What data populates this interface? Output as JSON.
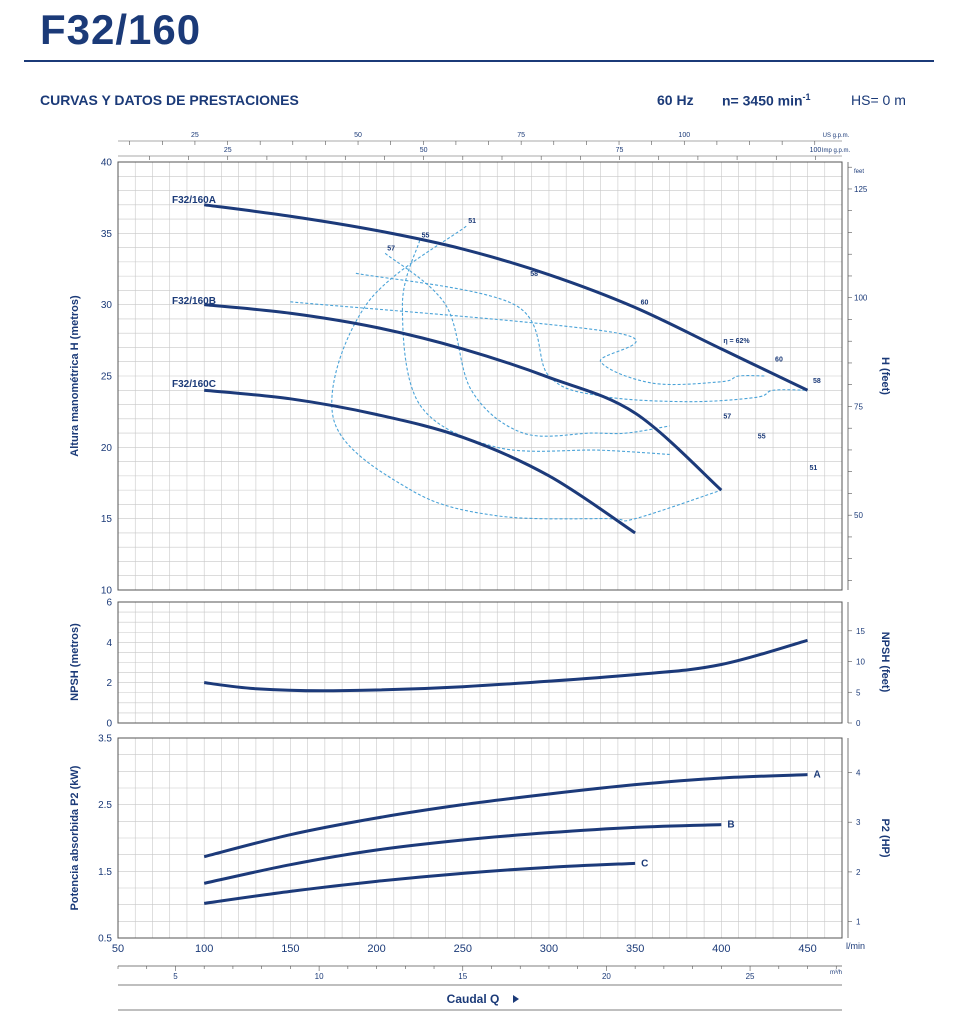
{
  "header": {
    "model": "F32/160",
    "section_title": "CURVAS Y DATOS DE PRESTACIONES",
    "frequency": "60 Hz",
    "speed_prefix": "n= 3450 min",
    "speed_sup": "-1",
    "hs": "HS= 0 m"
  },
  "colors": {
    "curve": "#1c3a7a",
    "efficiency": "#4aa3d8",
    "grid": "#c8c8c8",
    "frame": "#555555",
    "text": "#1b3a78"
  },
  "chart_data": [
    {
      "type": "line",
      "panel": "head",
      "ylabel": "Altura manométrica H (metros)",
      "ylabel_right": "H (feet)",
      "ylim": [
        10,
        40
      ],
      "yticks": [
        "10",
        "15",
        "20",
        "25",
        "30",
        "35",
        "40"
      ],
      "ylim_right": [
        32.8,
        131.2
      ],
      "yticks_right": [
        "50",
        "75",
        "100",
        "125"
      ],
      "right_unit": "feet",
      "top_axis_1": {
        "unit": "US g.p.m.",
        "ticks": [
          "25",
          "50",
          "75",
          "100"
        ]
      },
      "top_axis_2": {
        "unit": "Imp g.p.m.",
        "ticks": [
          "25",
          "50",
          "75",
          "100"
        ]
      },
      "series": [
        {
          "name": "F32/160A",
          "x": [
            100,
            150,
            200,
            250,
            300,
            350,
            400,
            450
          ],
          "y": [
            37,
            36.2,
            35.2,
            33.9,
            32.1,
            29.8,
            26.9,
            24
          ]
        },
        {
          "name": "F32/160B",
          "x": [
            100,
            150,
            200,
            250,
            300,
            350,
            400
          ],
          "y": [
            30,
            29.4,
            28.4,
            26.9,
            24.9,
            22.4,
            17
          ]
        },
        {
          "name": "F32/160C",
          "x": [
            100,
            150,
            200,
            250,
            300,
            350
          ],
          "y": [
            24,
            23.4,
            22.3,
            20.7,
            18,
            14
          ]
        }
      ],
      "efficiency_contours": [
        {
          "label": "51",
          "x": [
            252,
            194,
            175,
            220,
            270,
            335,
            350,
            400
          ],
          "y": [
            35.5,
            30,
            22,
            17,
            15.2,
            15,
            15,
            17
          ]
        },
        {
          "label": "55",
          "x": [
            225,
            215,
            225,
            270,
            330,
            370
          ],
          "y": [
            34.5,
            30,
            23,
            20,
            19.8,
            19.5
          ]
        },
        {
          "label": "57",
          "x": [
            205,
            240,
            255,
            285,
            325,
            345,
            370
          ],
          "y": [
            33.6,
            30,
            24,
            21,
            21,
            21,
            21.5
          ]
        },
        {
          "label": "58",
          "x": [
            188,
            280,
            300,
            330,
            380,
            420,
            430,
            450
          ],
          "y": [
            32.2,
            30,
            25,
            23.6,
            23.2,
            23.5,
            24,
            24
          ]
        },
        {
          "label": "60",
          "x": [
            150,
            340,
            330,
            360,
            400,
            410,
            425
          ],
          "y": [
            30.2,
            28,
            26,
            24.5,
            24.6,
            25,
            25
          ]
        }
      ],
      "efficiency_labels": [
        "51",
        "55",
        "57",
        "58",
        "60",
        "η = 62%",
        "60",
        "58",
        "57",
        "55",
        "51"
      ]
    },
    {
      "type": "line",
      "panel": "npsh",
      "ylabel": "NPSH (metros)",
      "ylabel_right": "NPSH (feet)",
      "ylim": [
        0,
        6
      ],
      "yticks": [
        "0",
        "2",
        "4",
        "6"
      ],
      "yticks_right": [
        "0",
        "5",
        "10",
        "15"
      ],
      "series": [
        {
          "name": "",
          "x": [
            100,
            130,
            175,
            250,
            350,
            400,
            450
          ],
          "y": [
            2,
            1.7,
            1.6,
            1.8,
            2.4,
            2.9,
            4.1
          ]
        }
      ]
    },
    {
      "type": "line",
      "panel": "power",
      "ylabel": "Potencia absorbida P2 (kW)",
      "ylabel_right": "P2 (HP)",
      "ylim": [
        0.5,
        3.5
      ],
      "yticks": [
        "0.5",
        "1.5",
        "2.5",
        "3.5"
      ],
      "yticks_right": [
        "1",
        "2",
        "3",
        "4"
      ],
      "series": [
        {
          "name": "A",
          "x": [
            100,
            150,
            200,
            250,
            300,
            350,
            400,
            450
          ],
          "y": [
            1.72,
            2.05,
            2.3,
            2.5,
            2.66,
            2.8,
            2.9,
            2.95
          ]
        },
        {
          "name": "B",
          "x": [
            100,
            150,
            200,
            250,
            300,
            350,
            400
          ],
          "y": [
            1.32,
            1.6,
            1.82,
            1.97,
            2.08,
            2.16,
            2.2
          ]
        },
        {
          "name": "C",
          "x": [
            100,
            150,
            200,
            250,
            300,
            350
          ],
          "y": [
            1.02,
            1.2,
            1.35,
            1.47,
            1.56,
            1.62
          ]
        }
      ]
    }
  ],
  "x_axis": {
    "unit": "l/min",
    "ticks": [
      "50",
      "100",
      "150",
      "200",
      "250",
      "300",
      "350",
      "400",
      "450"
    ],
    "xlim": [
      50,
      470
    ],
    "m3h_unit": "m³/h",
    "m3h_ticks": [
      "5",
      "10",
      "15",
      "20",
      "25"
    ],
    "caudal_label": "Caudal Q"
  }
}
